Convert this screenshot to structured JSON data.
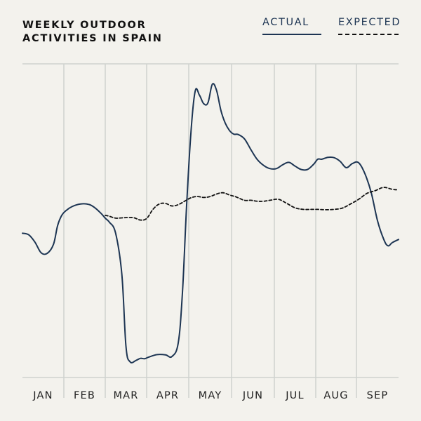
{
  "chart_data": {
    "type": "line",
    "title_lines": [
      "WEEKLY OUTDOOR",
      "ACTIVITIES IN SPAIN"
    ],
    "categories": [
      "JAN",
      "FEB",
      "MAR",
      "APR",
      "MAY",
      "JUN",
      "JUL",
      "AUG",
      "SEP"
    ],
    "xlim": [
      0,
      9
    ],
    "ylim": [
      0,
      100
    ],
    "grid": "vertical",
    "legend_position": "top-right",
    "series": [
      {
        "name": "ACTUAL",
        "color": "#1d3553",
        "style": "solid",
        "x": [
          0,
          0.15,
          0.3,
          0.45,
          0.6,
          0.75,
          0.85,
          0.95,
          1.05,
          1.2,
          1.4,
          1.6,
          1.75,
          1.9,
          2.0,
          2.1,
          2.25,
          2.4,
          2.5,
          2.6,
          2.75,
          2.85,
          2.95,
          3.05,
          3.25,
          3.45,
          3.6,
          3.75,
          3.85,
          3.95,
          4.05,
          4.15,
          4.25,
          4.35,
          4.45,
          4.55,
          4.65,
          4.75,
          4.85,
          4.95,
          5.05,
          5.15,
          5.3,
          5.45,
          5.6,
          5.75,
          5.9,
          6.05,
          6.2,
          6.35,
          6.5,
          6.65,
          6.8,
          6.95,
          7.05,
          7.15,
          7.3,
          7.45,
          7.6,
          7.75,
          7.9,
          8.05,
          8.2,
          8.35,
          8.5,
          8.65,
          8.75,
          8.85,
          9.0
        ],
        "values": [
          46,
          45.5,
          43.2,
          39.8,
          39.6,
          42.5,
          48.5,
          51.7,
          53.2,
          54.5,
          55.3,
          55.2,
          54.1,
          52.3,
          50.8,
          49.5,
          46,
          33,
          10,
          5,
          5.5,
          6.1,
          6,
          6.5,
          7.3,
          7.2,
          6.7,
          11,
          27,
          55,
          78,
          91.3,
          90,
          87.3,
          87.6,
          93.5,
          91.5,
          85.2,
          81.2,
          78.8,
          77.6,
          77.5,
          76.1,
          72.7,
          69.5,
          67.6,
          66.6,
          66.6,
          67.8,
          68.6,
          67.4,
          66.3,
          66.3,
          68,
          69.6,
          69.6,
          70.2,
          70.1,
          68.9,
          66.9,
          68.2,
          68.5,
          65,
          59,
          50,
          44,
          42,
          43,
          44
        ]
      },
      {
        "name": "EXPECTED",
        "color": "#111111",
        "style": "dashed",
        "x": [
          2.0,
          2.1,
          2.25,
          2.4,
          2.55,
          2.7,
          2.85,
          3.0,
          3.15,
          3.3,
          3.45,
          3.6,
          3.75,
          3.9,
          4.05,
          4.2,
          4.35,
          4.5,
          4.65,
          4.8,
          4.95,
          5.1,
          5.3,
          5.45,
          5.6,
          5.75,
          5.9,
          6.1,
          6.3,
          6.5,
          6.7,
          6.9,
          7.05,
          7.25,
          7.45,
          7.65,
          7.85,
          8.05,
          8.25,
          8.45,
          8.65,
          8.85,
          9.0
        ],
        "values": [
          51.7,
          51.4,
          50.8,
          50.9,
          51,
          50.9,
          50.2,
          50.7,
          53.6,
          55.3,
          55.5,
          54.7,
          55.1,
          56.2,
          57.3,
          57.7,
          57.4,
          57.7,
          58.5,
          58.9,
          58.2,
          57.6,
          56.5,
          56.5,
          56.2,
          56.2,
          56.5,
          56.8,
          55.5,
          54.1,
          53.6,
          53.6,
          53.6,
          53.5,
          53.6,
          54,
          55.3,
          56.8,
          58.7,
          59.6,
          60.6,
          60,
          59.8
        ]
      }
    ]
  }
}
